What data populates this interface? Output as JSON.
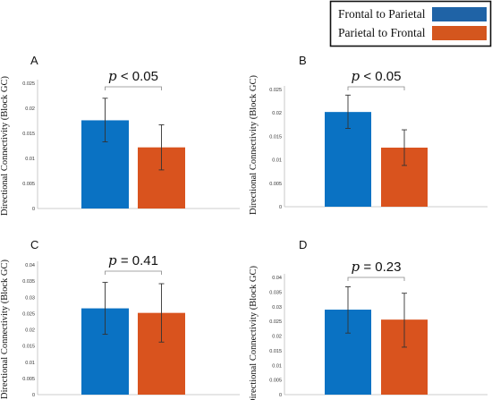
{
  "legend": [
    {
      "label": "Frontal to Parietal",
      "color": "#1f63a6"
    },
    {
      "label": "Parietal to Frontal",
      "color": "#d4561e"
    }
  ],
  "colors": {
    "bar_fp": "#0a72c3",
    "bar_pf": "#d9531e",
    "axis": "#bdbdbd",
    "error": "#333333"
  },
  "chart_data": [
    {
      "type": "bar",
      "panel": "A",
      "categories": [
        "Frontal to Parietal",
        "Parietal to Frontal"
      ],
      "values": [
        0.0176,
        0.0122
      ],
      "errors": [
        [
          0.0133,
          0.022
        ],
        [
          0.0077,
          0.0167
        ]
      ],
      "ylabel": "Directional Connectivity (Block GC)",
      "ylim": [
        0,
        0.025
      ],
      "yticks": [
        "0",
        "0.005",
        "0.01",
        "0.015",
        "0.02",
        "0.025"
      ],
      "annotation": {
        "p": "p",
        "rest": " <  0.05"
      }
    },
    {
      "type": "bar",
      "panel": "B",
      "categories": [
        "Frontal to Parietal",
        "Parietal to Frontal"
      ],
      "values": [
        0.0202,
        0.0126
      ],
      "errors": [
        [
          0.0167,
          0.0238
        ],
        [
          0.0088,
          0.0164
        ]
      ],
      "ylabel": "Directional Connectivity (Block GC)",
      "ylim": [
        0,
        0.025
      ],
      "yticks": [
        "0",
        "0.005",
        "0.01",
        "0.015",
        "0.02",
        "0.025"
      ],
      "annotation": {
        "p": "p",
        "rest": " <  0.05"
      }
    },
    {
      "type": "bar",
      "panel": "C",
      "categories": [
        "Frontal to Parietal",
        "Parietal to Frontal"
      ],
      "values": [
        0.0266,
        0.0252
      ],
      "errors": [
        [
          0.0186,
          0.0346
        ],
        [
          0.0162,
          0.0342
        ]
      ],
      "ylabel": "Directional Connectivity (Block GC)",
      "ylim": [
        0,
        0.04
      ],
      "yticks": [
        "0",
        "0.005",
        "0.01",
        "0.015",
        "0.02",
        "0.025",
        "0.03",
        "0.035",
        "0.04"
      ],
      "annotation": {
        "p": "p",
        "rest": " = 0.41"
      }
    },
    {
      "type": "bar",
      "panel": "D",
      "categories": [
        "Frontal to Parietal",
        "Parietal to Frontal"
      ],
      "values": [
        0.029,
        0.0256
      ],
      "errors": [
        [
          0.021,
          0.0368
        ],
        [
          0.0162,
          0.0346
        ]
      ],
      "ylabel": "Directional Connectivity (Block GC)",
      "ylim": [
        0,
        0.04
      ],
      "yticks": [
        "0",
        "0.005",
        "0.01",
        "0.015",
        "0.02",
        "0.025",
        "0.03",
        "0.035",
        "0.04"
      ],
      "annotation": {
        "p": "p",
        "rest": " = 0.23"
      }
    }
  ]
}
